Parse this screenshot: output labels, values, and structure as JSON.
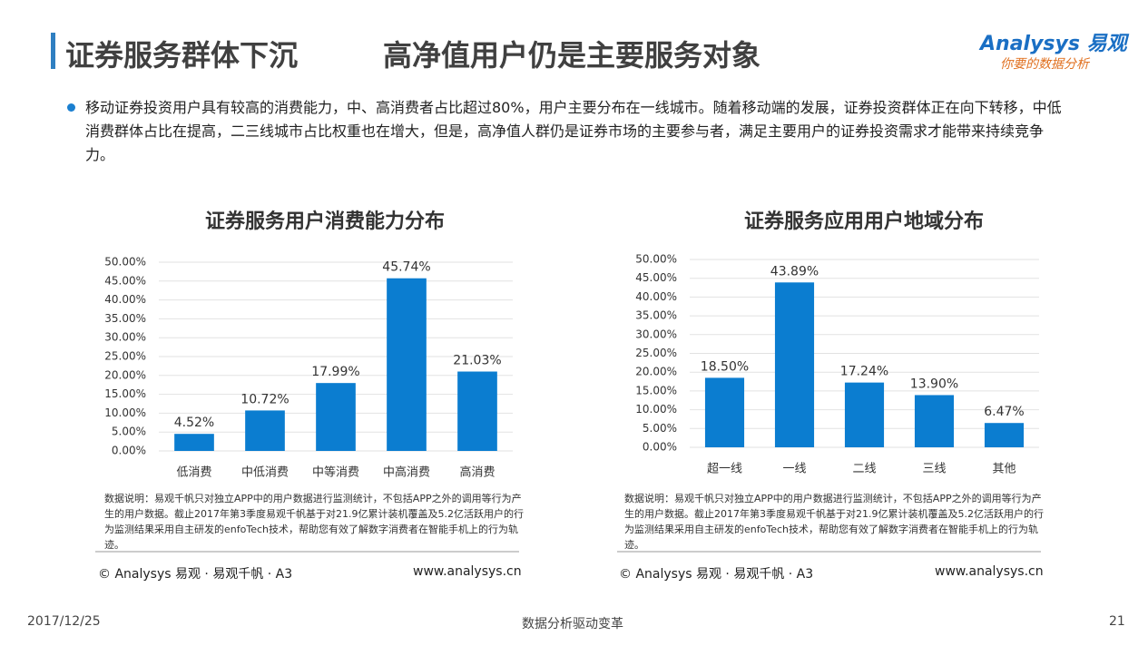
{
  "header": {
    "title_part1": "证券服务群体下沉",
    "title_part2": "高净值用户仍是主要服务对象"
  },
  "logo": {
    "brand": "Analysys",
    "brand_cn": "易观",
    "tagline": "你要的数据分析"
  },
  "bullet": "移动证券投资用户具有较高的消费能力，中、高消费者占比超过80%，用户主要分布在一线城市。随着移动端的发展，证券投资群体正在向下转移，中低消费群体占比在提高，二三线城市占比权重也在增大，但是，高净值人群仍是证券市场的主要参与者，满足主要用户的证券投资需求才能带来持续竞争力。",
  "chart_data": [
    {
      "type": "bar",
      "title": "证券服务用户消费能力分布",
      "categories": [
        "低消费",
        "中低消费",
        "中等消费",
        "中高消费",
        "高消费"
      ],
      "values": [
        4.52,
        10.72,
        17.99,
        45.74,
        21.03
      ],
      "value_labels": [
        "4.52%",
        "10.72%",
        "17.99%",
        "45.74%",
        "21.03%"
      ],
      "color": "#0b7dd0",
      "ylim": [
        0,
        50
      ],
      "yticks": [
        {
          "value": 0,
          "label": "0.00%"
        },
        {
          "value": 5,
          "label": "5.00%"
        },
        {
          "value": 10,
          "label": "10.00%"
        },
        {
          "value": 15,
          "label": "15.00%"
        },
        {
          "value": 20,
          "label": "20.00%"
        },
        {
          "value": 25,
          "label": "25.00%"
        },
        {
          "value": 30,
          "label": "30.00%"
        },
        {
          "value": 35,
          "label": "35.00%"
        },
        {
          "value": 40,
          "label": "40.00%"
        },
        {
          "value": 45,
          "label": "45.00%"
        },
        {
          "value": 50,
          "label": "50.00%"
        }
      ],
      "grid": true,
      "note": "数据说明：易观千帆只对独立APP中的用户数据进行监测统计，不包括APP之外的调用等行为产生的用户数据。截止2017年第3季度易观千帆基于对21.9亿累计装机覆盖及5.2亿活跃用户的行为监测结果采用自主研发的enfoTech技术，帮助您有效了解数字消费者在智能手机上的行为轨迹。",
      "source": "© Analysys 易观 · 易观千帆 · A3",
      "url": "www.analysys.cn"
    },
    {
      "type": "bar",
      "title": "证券服务应用用户地域分布",
      "categories": [
        "超一线",
        "一线",
        "二线",
        "三线",
        "其他"
      ],
      "values": [
        18.5,
        43.89,
        17.24,
        13.9,
        6.47
      ],
      "value_labels": [
        "18.50%",
        "43.89%",
        "17.24%",
        "13.90%",
        "6.47%"
      ],
      "color": "#0b7dd0",
      "ylim": [
        0,
        50
      ],
      "yticks": [
        {
          "value": 0,
          "label": "0.00%"
        },
        {
          "value": 5,
          "label": "5.00%"
        },
        {
          "value": 10,
          "label": "10.00%"
        },
        {
          "value": 15,
          "label": "15.00%"
        },
        {
          "value": 20,
          "label": "20.00%"
        },
        {
          "value": 25,
          "label": "25.00%"
        },
        {
          "value": 30,
          "label": "30.00%"
        },
        {
          "value": 35,
          "label": "35.00%"
        },
        {
          "value": 40,
          "label": "40.00%"
        },
        {
          "value": 45,
          "label": "45.00%"
        },
        {
          "value": 50,
          "label": "50.00%"
        }
      ],
      "grid": true,
      "note": "数据说明：易观千帆只对独立APP中的用户数据进行监测统计，不包括APP之外的调用等行为产生的用户数据。截止2017年第3季度易观千帆基于对21.9亿累计装机覆盖及5.2亿活跃用户的行为监测结果采用自主研发的enfoTech技术，帮助您有效了解数字消费者在智能手机上的行为轨迹。",
      "source": "© Analysys 易观 · 易观千帆 · A3",
      "url": "www.analysys.cn"
    }
  ],
  "footer": {
    "date": "2017/12/25",
    "slogan": "数据分析驱动变革",
    "page": "21"
  }
}
